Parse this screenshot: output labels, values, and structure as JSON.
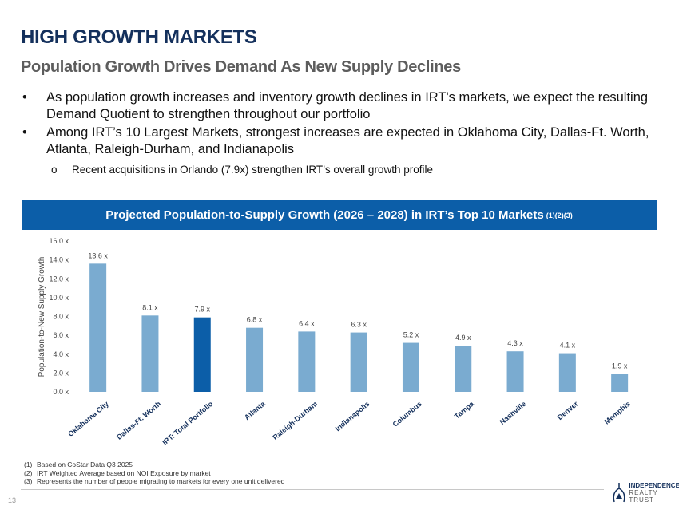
{
  "header": {
    "title": "HIGH GROWTH MARKETS",
    "subtitle": "Population Growth Drives Demand As New Supply Declines"
  },
  "bullets": [
    "As population growth increases and inventory growth declines in IRT's markets, we expect the resulting Demand Quotient to strengthen throughout our portfolio",
    "Among IRT’s 10 Largest Markets, strongest increases are expected in Oklahoma City, Dallas-Ft. Worth, Atlanta, Raleigh-Durham, and Indianapolis"
  ],
  "bullet_symbol": "•",
  "sub_bullet_symbol": "o",
  "sub_bullet": "Recent acquisitions in Orlando (7.9x) strengthen IRT’s overall growth profile",
  "banner": {
    "text": "Projected Population-to-Supply Growth (2026 – 2028) in IRT’s Top 10 Markets",
    "refs": "(1)(2)(3)"
  },
  "chart_data": {
    "type": "bar",
    "title": "Projected Population-to-Supply Growth (2026 – 2028) in IRT’s Top 10 Markets",
    "xlabel": "",
    "ylabel": "Population-to-New Supply Growth",
    "ylim": [
      0,
      16
    ],
    "yticks": [
      0,
      2,
      4,
      6,
      8,
      10,
      12,
      14,
      16
    ],
    "ytick_labels": [
      "0.0 x",
      "2.0 x",
      "4.0 x",
      "6.0 x",
      "8.0 x",
      "10.0 x",
      "12.0 x",
      "14.0 x",
      "16.0 x"
    ],
    "categories": [
      "Oklahoma City",
      "Dallas-Ft. Worth",
      "IRT: Total Portfolio",
      "Atlanta",
      "Raleigh-Durham",
      "Indianapolis",
      "Columbus",
      "Tampa",
      "Nashville",
      "Denver",
      "Memphis"
    ],
    "values": [
      13.6,
      8.1,
      7.9,
      6.8,
      6.4,
      6.3,
      5.2,
      4.9,
      4.3,
      4.1,
      1.9
    ],
    "data_labels": [
      "13.6 x",
      "8.1 x",
      "7.9 x",
      "6.8 x",
      "6.4 x",
      "6.3 x",
      "5.2 x",
      "4.9 x",
      "4.3 x",
      "4.1 x",
      "1.9 x"
    ],
    "highlight_index": 2,
    "colors": {
      "default": "#7aabd0",
      "highlight": "#0c5ea8"
    },
    "grid": false
  },
  "footnotes": [
    {
      "num": "(1)",
      "text": "Based on CoStar Data Q3 2025"
    },
    {
      "num": "(2)",
      "text": "IRT Weighted Average based on NOI Exposure by market"
    },
    {
      "num": "(3)",
      "text": "Represents the number of people migrating to markets for every one unit delivered"
    }
  ],
  "page_number": "13",
  "logo": {
    "line1": "INDEPENDENCE",
    "line2": "REALTY TRUST"
  }
}
